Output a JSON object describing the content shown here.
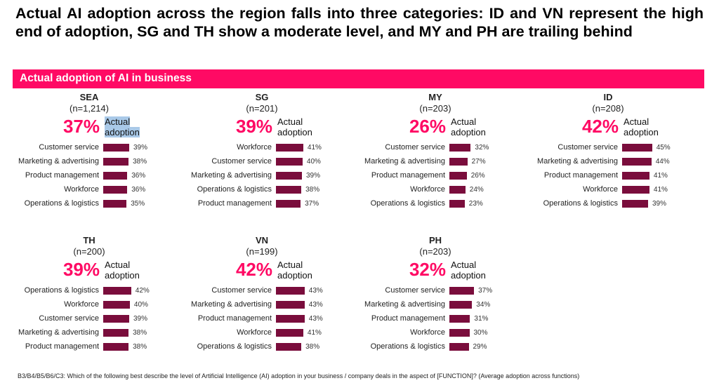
{
  "headline": "Actual AI adoption across the region falls into three categories: ID and VN represent the high end of adoption, SG and TH show a moderate level, and MY and PH are trailing behind",
  "banner_title": "Actual adoption of AI in business",
  "footnote": "B3/B4/B5/B6/C3: Which of the following best describe the level of Artificial Intelligence (AI) adoption in your business / company deals in the aspect of [FUNCTION]? (Average adoption across functions)",
  "colors": {
    "accent": "#ff0a64",
    "bar": "#7a0d3c",
    "highlight": "#a9c9e8"
  },
  "chart_data": [
    {
      "type": "bar",
      "title": "SEA",
      "subtitle": "(n=1,214)",
      "headline_value": "37%",
      "headline_label": "Actual adoption",
      "categories": [
        "Customer service",
        "Marketing & advertising",
        "Product management",
        "Workforce",
        "Operations & logistics"
      ],
      "values": [
        39,
        38,
        36,
        36,
        35
      ],
      "labels": [
        "39%",
        "38%",
        "36%",
        "36%",
        "35%"
      ]
    },
    {
      "type": "bar",
      "title": "SG",
      "subtitle": "(n=201)",
      "headline_value": "39%",
      "headline_label": "Actual adoption",
      "categories": [
        "Workforce",
        "Customer service",
        "Marketing & advertising",
        "Operations & logistics",
        "Product management"
      ],
      "values": [
        41,
        40,
        39,
        38,
        37
      ],
      "labels": [
        "41%",
        "40%",
        "39%",
        "38%",
        "37%"
      ]
    },
    {
      "type": "bar",
      "title": "MY",
      "subtitle": "(n=203)",
      "headline_value": "26%",
      "headline_label": "Actual adoption",
      "categories": [
        "Customer service",
        "Marketing & advertising",
        "Product management",
        "Workforce",
        "Operations & logistics"
      ],
      "values": [
        32,
        27,
        26,
        24,
        23
      ],
      "labels": [
        "32%",
        "27%",
        "26%",
        "24%",
        "23%"
      ]
    },
    {
      "type": "bar",
      "title": "ID",
      "subtitle": "(n=208)",
      "headline_value": "42%",
      "headline_label": "Actual adoption",
      "categories": [
        "Customer service",
        "Marketing & advertising",
        "Product management",
        "Workforce",
        "Operations & logistics"
      ],
      "values": [
        45,
        44,
        41,
        41,
        39
      ],
      "labels": [
        "45%",
        "44%",
        "41%",
        "41%",
        "39%"
      ]
    },
    {
      "type": "bar",
      "title": "TH",
      "subtitle": "(n=200)",
      "headline_value": "39%",
      "headline_label": "Actual adoption",
      "categories": [
        "Operations & logistics",
        "Workforce",
        "Customer service",
        "Marketing & advertising",
        "Product management"
      ],
      "values": [
        42,
        40,
        39,
        38,
        38
      ],
      "labels": [
        "42%",
        "40%",
        "39%",
        "38%",
        "38%"
      ]
    },
    {
      "type": "bar",
      "title": "VN",
      "subtitle": "(n=199)",
      "headline_value": "42%",
      "headline_label": "Actual adoption",
      "categories": [
        "Customer service",
        "Marketing & advertising",
        "Product management",
        "Workforce",
        "Operations & logistics"
      ],
      "values": [
        43,
        43,
        43,
        41,
        38
      ],
      "labels": [
        "43%",
        "43%",
        "43%",
        "41%",
        "38%"
      ]
    },
    {
      "type": "bar",
      "title": "PH",
      "subtitle": "(n=203)",
      "headline_value": "32%",
      "headline_label": "Actual adoption",
      "categories": [
        "Customer service",
        "Marketing & advertising",
        "Product management",
        "Workforce",
        "Operations & logistics"
      ],
      "values": [
        37,
        34,
        31,
        30,
        29
      ],
      "labels": [
        "37%",
        "34%",
        "31%",
        "30%",
        "29%"
      ]
    }
  ]
}
